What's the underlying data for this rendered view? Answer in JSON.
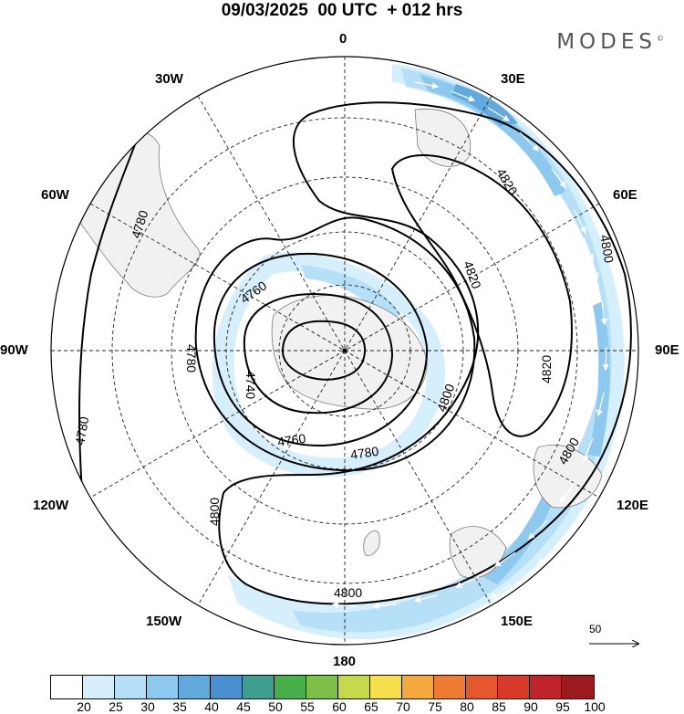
{
  "title": "09/03/2025  00 UTC  + 012 hrs",
  "logo": "MODES",
  "logo_mark": "©",
  "longitude_labels": {
    "n0": "0",
    "n30e": "30E",
    "n60e": "60E",
    "n90e": "90E",
    "n120e": "120E",
    "n150e": "150E",
    "n180": "180",
    "n150w": "150W",
    "n120w": "120W",
    "n90w": "90W",
    "n60w": "60W",
    "n30w": "30W"
  },
  "contour_labels": {
    "c4760a": "4760",
    "c4740": "4740",
    "c4780a": "4780",
    "c4780b": "4780",
    "c4780c": "4780",
    "c4820a": "4820",
    "c4820b": "4820",
    "c4820c": "4820",
    "c4800a": "4800",
    "c4800b": "4800",
    "c4800c": "4800",
    "c4800d": "4800",
    "c4760b": "4760",
    "c4780d": "4780"
  },
  "reference_vector": {
    "label": "50"
  },
  "colorbar": {
    "ticks": [
      "20",
      "25",
      "30",
      "35",
      "40",
      "45",
      "50",
      "55",
      "60",
      "65",
      "70",
      "75",
      "80",
      "85",
      "90",
      "95",
      "100"
    ],
    "colors": [
      "#ffffff",
      "#d6effc",
      "#b6e0f7",
      "#8dc9ee",
      "#62a9de",
      "#4a8fcf",
      "#3f9f8f",
      "#48b04b",
      "#7cc04a",
      "#c5d94a",
      "#f6df4c",
      "#f3a93c",
      "#ee7d33",
      "#e5582d",
      "#d83a2a",
      "#bf2428",
      "#9b1b1f"
    ]
  }
}
